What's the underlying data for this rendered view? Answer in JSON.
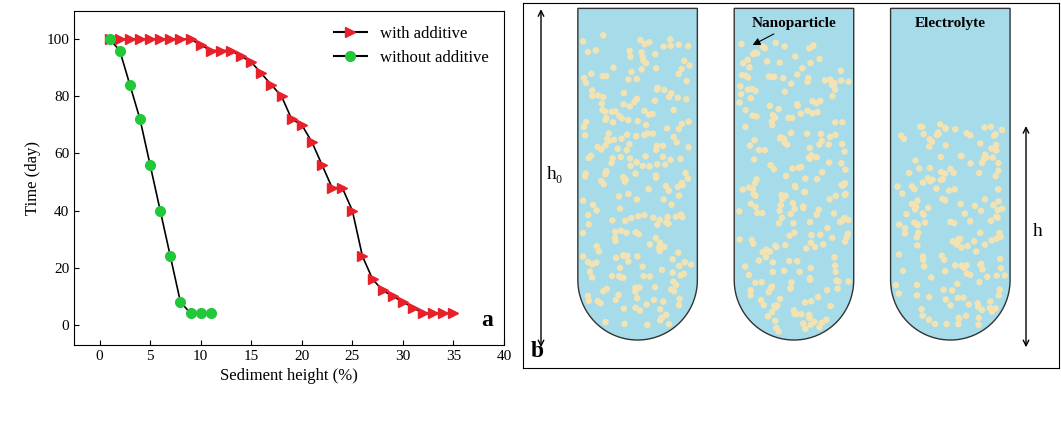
{
  "chart_data": {
    "type": "line",
    "panel_label": "a",
    "x_label": "Sediment height (%)",
    "y_label": "Time (day)",
    "xlim": [
      -2.5,
      40
    ],
    "xticks": [
      0,
      5,
      10,
      15,
      20,
      25,
      30,
      35,
      40
    ],
    "ylim": [
      -7,
      110
    ],
    "yticks": [
      0,
      20,
      40,
      60,
      80,
      100
    ],
    "legend": "upper right",
    "series": [
      {
        "name": "with additive",
        "color": "#e8202a",
        "marker": "triangle_right",
        "line_style": "solid",
        "x": [
          1,
          2,
          3,
          4,
          5,
          6,
          7,
          8,
          9,
          10,
          11,
          12,
          13,
          14,
          15,
          16,
          17,
          18,
          19,
          20,
          21,
          22,
          23,
          24,
          25,
          26,
          27,
          28,
          29,
          30,
          31,
          32,
          33,
          34,
          35
        ],
        "values": [
          100,
          100,
          100,
          100,
          100,
          100,
          100,
          100,
          100,
          98,
          96,
          96,
          96,
          94,
          92,
          88,
          84,
          80,
          72,
          70,
          64,
          56,
          48,
          48,
          40,
          24,
          16,
          12,
          10,
          8,
          6,
          4,
          4,
          4,
          4
        ]
      },
      {
        "name": "without additive",
        "color": "#22c73a",
        "marker": "circle",
        "line_style": "solid",
        "x": [
          1,
          2,
          3,
          4,
          5,
          6,
          7,
          8,
          9,
          10,
          11
        ],
        "values": [
          100,
          96,
          84,
          72,
          56,
          40,
          24,
          8,
          4,
          4,
          4
        ]
      }
    ]
  },
  "diagram": {
    "panel_label": "b",
    "labels": {
      "nanoparticle": "Nanoparticle",
      "electrolyte": "Electrolyte",
      "initial_height": "h₀",
      "height": "h"
    }
  }
}
